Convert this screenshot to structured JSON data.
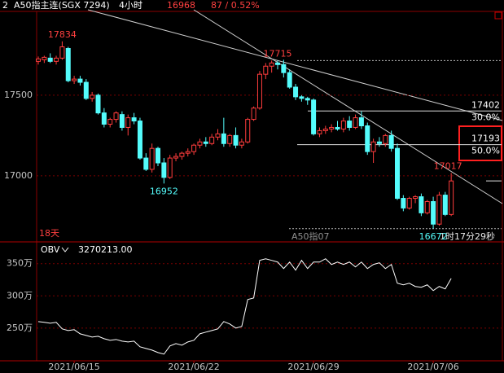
{
  "chart_data": {
    "type": "candlestick",
    "panel_number": "2",
    "title": "A50指主连(SGX 7294)",
    "period": "4小时",
    "change": "87 / 0.52%",
    "up_color": "#ff3c3c",
    "down_color": "#54fcfc",
    "ylim": [
      16600,
      18030
    ],
    "yticks": [
      17000,
      17500
    ],
    "grid": true,
    "categories": [
      null,
      null,
      null,
      null,
      null,
      null,
      "2021/06/15",
      null,
      null,
      null,
      null,
      null,
      null,
      null,
      null,
      null,
      null,
      null,
      null,
      null,
      null,
      null,
      null,
      null,
      null,
      null,
      "2021/06/22",
      null,
      null,
      null,
      null,
      null,
      null,
      null,
      null,
      null,
      null,
      null,
      null,
      null,
      null,
      null,
      null,
      null,
      null,
      null,
      "2021/06/29",
      null,
      null,
      null,
      null,
      null,
      null,
      null,
      null,
      null,
      null,
      null,
      null,
      null,
      null,
      null,
      null,
      null,
      null,
      null,
      "2021/07/06",
      null,
      null,
      null
    ],
    "ohlc": [
      [
        17710,
        17740,
        17690,
        17725
      ],
      [
        17720,
        17745,
        17700,
        17735
      ],
      [
        17730,
        17760,
        17700,
        17710
      ],
      [
        17710,
        17745,
        17690,
        17730
      ],
      [
        17730,
        17834,
        17720,
        17800
      ],
      [
        17790,
        17800,
        17580,
        17590
      ],
      [
        17590,
        17620,
        17570,
        17600
      ],
      [
        17600,
        17620,
        17560,
        17580
      ],
      [
        17580,
        17600,
        17470,
        17480
      ],
      [
        17480,
        17520,
        17460,
        17500
      ],
      [
        17500,
        17510,
        17380,
        17390
      ],
      [
        17390,
        17420,
        17300,
        17320
      ],
      [
        17320,
        17360,
        17300,
        17350
      ],
      [
        17350,
        17400,
        17330,
        17390
      ],
      [
        17380,
        17400,
        17280,
        17300
      ],
      [
        17300,
        17380,
        17250,
        17360
      ],
      [
        17360,
        17390,
        17320,
        17340
      ],
      [
        17340,
        17360,
        17100,
        17110
      ],
      [
        17110,
        17140,
        17030,
        17040
      ],
      [
        17040,
        17200,
        17020,
        17170
      ],
      [
        17170,
        17180,
        17060,
        17080
      ],
      [
        17080,
        17110,
        16952,
        16990
      ],
      [
        16990,
        17130,
        16980,
        17110
      ],
      [
        17110,
        17140,
        17090,
        17120
      ],
      [
        17120,
        17150,
        17100,
        17140
      ],
      [
        17140,
        17170,
        17120,
        17150
      ],
      [
        17150,
        17200,
        17130,
        17190
      ],
      [
        17190,
        17230,
        17170,
        17210
      ],
      [
        17210,
        17240,
        17180,
        17200
      ],
      [
        17200,
        17260,
        17190,
        17240
      ],
      [
        17240,
        17290,
        17220,
        17260
      ],
      [
        17260,
        17360,
        17180,
        17200
      ],
      [
        17200,
        17260,
        17180,
        17250
      ],
      [
        17250,
        17300,
        17170,
        17190
      ],
      [
        17190,
        17230,
        17170,
        17210
      ],
      [
        17210,
        17360,
        17200,
        17350
      ],
      [
        17350,
        17430,
        17340,
        17420
      ],
      [
        17420,
        17650,
        17410,
        17630
      ],
      [
        17630,
        17700,
        17600,
        17680
      ],
      [
        17680,
        17715,
        17640,
        17700
      ],
      [
        17700,
        17715,
        17660,
        17690
      ],
      [
        17690,
        17720,
        17610,
        17640
      ],
      [
        17640,
        17660,
        17540,
        17550
      ],
      [
        17550,
        17570,
        17470,
        17490
      ],
      [
        17490,
        17500,
        17460,
        17480
      ],
      [
        17480,
        17490,
        17440,
        17470
      ],
      [
        17470,
        17480,
        17250,
        17260
      ],
      [
        17260,
        17300,
        17240,
        17280
      ],
      [
        17280,
        17310,
        17260,
        17290
      ],
      [
        17290,
        17320,
        17270,
        17300
      ],
      [
        17300,
        17340,
        17280,
        17290
      ],
      [
        17290,
        17360,
        17270,
        17340
      ],
      [
        17340,
        17370,
        17280,
        17300
      ],
      [
        17300,
        17380,
        17290,
        17360
      ],
      [
        17360,
        17400,
        17290,
        17310
      ],
      [
        17310,
        17330,
        17130,
        17150
      ],
      [
        17150,
        17230,
        17080,
        17210
      ],
      [
        17210,
        17240,
        17180,
        17200
      ],
      [
        17200,
        17260,
        17180,
        17250
      ],
      [
        17250,
        17280,
        17150,
        17170
      ],
      [
        17170,
        17200,
        16850,
        16860
      ],
      [
        16860,
        16880,
        16780,
        16800
      ],
      [
        16800,
        16870,
        16790,
        16860
      ],
      [
        16860,
        16880,
        16830,
        16870
      ],
      [
        16870,
        16890,
        16750,
        16770
      ],
      [
        16770,
        16850,
        16760,
        16840
      ],
      [
        16840,
        16870,
        16672,
        16700
      ],
      [
        16700,
        16900,
        16690,
        16880
      ],
      [
        16880,
        16900,
        16750,
        16760
      ],
      [
        16760,
        17017,
        16750,
        16968
      ]
    ],
    "levels": [
      {
        "price": 17402,
        "label": "30.0%"
      },
      {
        "price": 17193,
        "label": "50.0%"
      }
    ],
    "annotations": {
      "days": "18天",
      "contract": "A50指07",
      "countdown": "1时17分29秒"
    },
    "indicator": {
      "name": "OBV",
      "value_label": "3270213.00",
      "color": "#ffffff",
      "ylim": [
        2030000,
        3800000
      ],
      "yticks": [
        {
          "value": 2500000,
          "label": "250万"
        },
        {
          "value": 3000000,
          "label": "300万"
        },
        {
          "value": 3500000,
          "label": "350万"
        }
      ],
      "values": [
        2601000,
        2589000,
        2576000,
        2589000,
        2487000,
        2462000,
        2475000,
        2411000,
        2386000,
        2361000,
        2373000,
        2335000,
        2310000,
        2323000,
        2297000,
        2285000,
        2297000,
        2209000,
        2183000,
        2158000,
        2120000,
        2095000,
        2222000,
        2259000,
        2234000,
        2285000,
        2310000,
        2411000,
        2437000,
        2462000,
        2487000,
        2601000,
        2563000,
        2500000,
        2525000,
        2943000,
        2968000,
        3551000,
        3576000,
        3551000,
        3525000,
        3424000,
        3525000,
        3399000,
        3551000,
        3424000,
        3525000,
        3525000,
        3576000,
        3487000,
        3525000,
        3487000,
        3525000,
        3449000,
        3525000,
        3424000,
        3487000,
        3513000,
        3424000,
        3487000,
        3196000,
        3171000,
        3196000,
        3146000,
        3133000,
        3171000,
        3082000,
        3146000,
        3108000,
        3270213
      ]
    }
  }
}
